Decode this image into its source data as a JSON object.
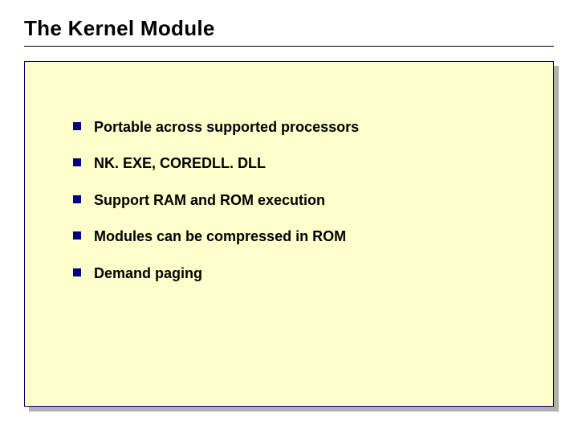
{
  "slide": {
    "title": "The Kernel Module",
    "title_color": "#000000",
    "title_fontsize": 26,
    "underline_color": "#000000",
    "content_bg": "#ffffcc",
    "content_border": "#000066",
    "shadow_color": "#b0b0b0",
    "bullet_color": "#000080",
    "bullet_size": 10,
    "text_color": "#000000",
    "text_fontsize": 18,
    "bullets": [
      "Portable across supported processors",
      "NK. EXE, COREDLL. DLL",
      "Support RAM and ROM execution",
      "Modules can be compressed in ROM",
      "Demand paging"
    ]
  }
}
